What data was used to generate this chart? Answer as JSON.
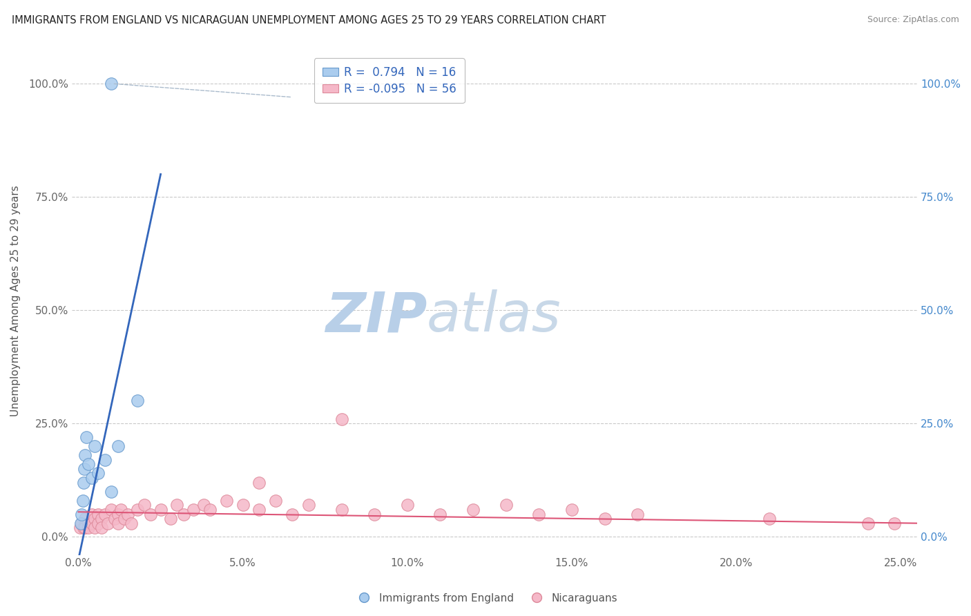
{
  "title": "IMMIGRANTS FROM ENGLAND VS NICARAGUAN UNEMPLOYMENT AMONG AGES 25 TO 29 YEARS CORRELATION CHART",
  "source": "Source: ZipAtlas.com",
  "ylabel": "Unemployment Among Ages 25 to 29 years",
  "xlim": [
    -0.002,
    0.255
  ],
  "ylim": [
    -0.04,
    1.08
  ],
  "xticks": [
    0.0,
    0.05,
    0.1,
    0.15,
    0.2,
    0.25
  ],
  "xticklabels": [
    "0.0%",
    "5.0%",
    "10.0%",
    "15.0%",
    "20.0%",
    "25.0%"
  ],
  "yticks": [
    0.0,
    0.25,
    0.5,
    0.75,
    1.0
  ],
  "yticklabels": [
    "0.0%",
    "25.0%",
    "50.0%",
    "75.0%",
    "100.0%"
  ],
  "R_england": 0.794,
  "N_england": 16,
  "R_nicaraguan": -0.095,
  "N_nicaraguan": 56,
  "england_color": "#aaccee",
  "england_edge": "#6699cc",
  "nicaraguan_color": "#f5b8c8",
  "nicaraguan_edge": "#dd8899",
  "trend_england_color": "#3366bb",
  "trend_nicaraguan_color": "#dd5577",
  "watermark_zip": "ZIP",
  "watermark_atlas": "atlas",
  "watermark_color_zip": "#c5d8ed",
  "watermark_color_atlas": "#c5d8ed",
  "background_color": "#ffffff",
  "england_x": [
    0.0008,
    0.001,
    0.0013,
    0.0015,
    0.0018,
    0.002,
    0.0025,
    0.003,
    0.004,
    0.005,
    0.006,
    0.008,
    0.01,
    0.012,
    0.018,
    0.01
  ],
  "england_y": [
    0.03,
    0.05,
    0.08,
    0.12,
    0.15,
    0.18,
    0.22,
    0.16,
    0.13,
    0.2,
    0.14,
    0.17,
    0.1,
    0.2,
    0.3,
    1.0
  ],
  "nicaraguan_x": [
    0.0005,
    0.001,
    0.0015,
    0.002,
    0.002,
    0.003,
    0.003,
    0.004,
    0.004,
    0.005,
    0.005,
    0.006,
    0.006,
    0.007,
    0.007,
    0.008,
    0.009,
    0.01,
    0.011,
    0.012,
    0.012,
    0.013,
    0.014,
    0.015,
    0.016,
    0.018,
    0.02,
    0.022,
    0.025,
    0.028,
    0.03,
    0.032,
    0.035,
    0.038,
    0.04,
    0.045,
    0.05,
    0.055,
    0.06,
    0.065,
    0.07,
    0.08,
    0.09,
    0.1,
    0.11,
    0.12,
    0.13,
    0.14,
    0.15,
    0.16,
    0.17,
    0.21,
    0.24,
    0.248,
    0.08,
    0.055
  ],
  "nicaraguan_y": [
    0.02,
    0.03,
    0.02,
    0.04,
    0.02,
    0.03,
    0.02,
    0.05,
    0.03,
    0.04,
    0.02,
    0.05,
    0.03,
    0.04,
    0.02,
    0.05,
    0.03,
    0.06,
    0.04,
    0.05,
    0.03,
    0.06,
    0.04,
    0.05,
    0.03,
    0.06,
    0.07,
    0.05,
    0.06,
    0.04,
    0.07,
    0.05,
    0.06,
    0.07,
    0.06,
    0.08,
    0.07,
    0.06,
    0.08,
    0.05,
    0.07,
    0.06,
    0.05,
    0.07,
    0.05,
    0.06,
    0.07,
    0.05,
    0.06,
    0.04,
    0.05,
    0.04,
    0.03,
    0.03,
    0.26,
    0.12
  ],
  "trend_eng_x0": 0.0,
  "trend_eng_x1": 0.025,
  "trend_eng_y0": -0.05,
  "trend_eng_y1": 0.8,
  "trend_nic_x0": 0.0,
  "trend_nic_x1": 0.255,
  "trend_nic_y0": 0.055,
  "trend_nic_y1": 0.03,
  "legend_text1": "R =  0.794   N = 16",
  "legend_text2": "R = -0.095   N = 56",
  "series1_label": "Immigrants from England",
  "series2_label": "Nicaraguans"
}
